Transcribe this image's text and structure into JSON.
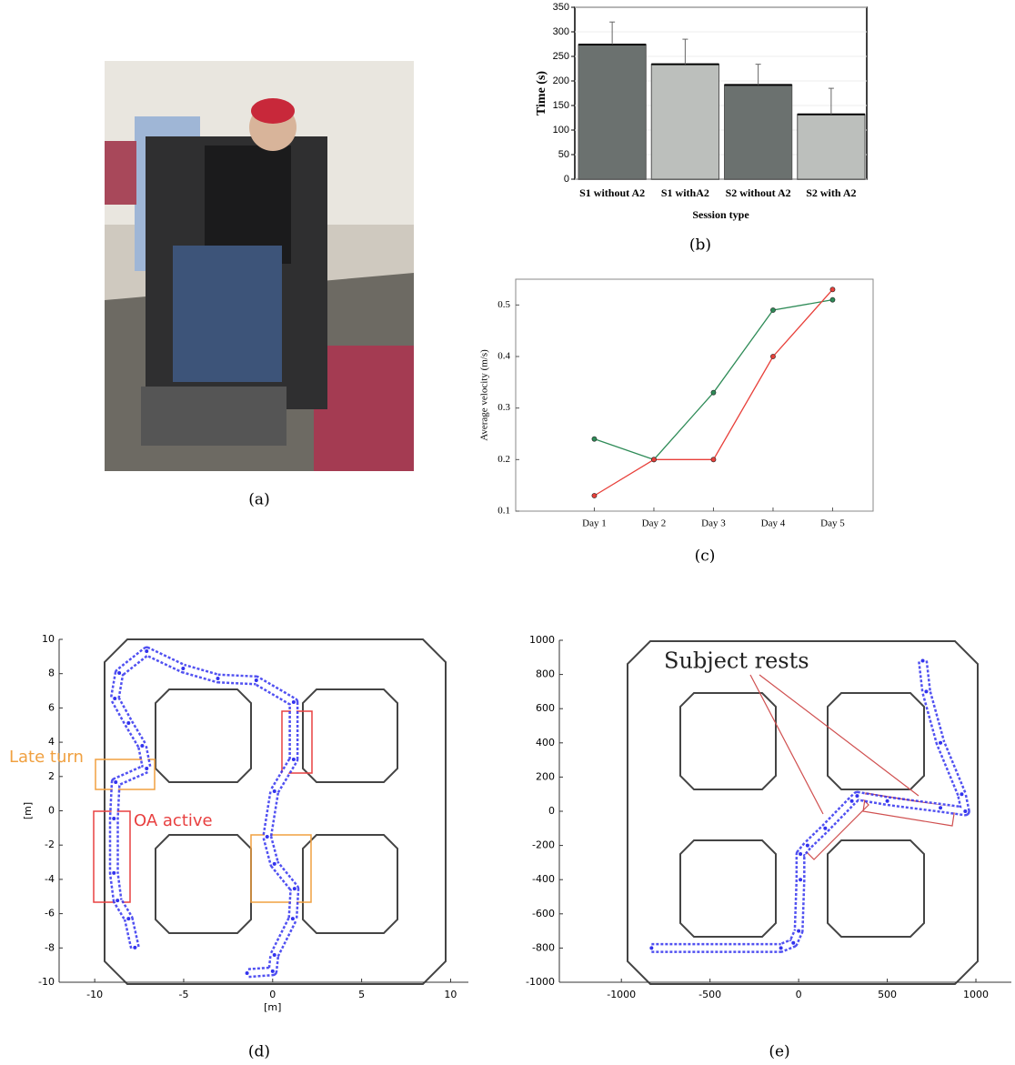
{
  "chart_data": [
    {
      "type": "image",
      "caption": "(a)"
    },
    {
      "type": "bar",
      "caption": "(b)",
      "y_label": "Time (s)",
      "x_label": "Session type",
      "categories": [
        "S1 without A2",
        "S1 withA2",
        "S2 without A2",
        "S2 with A2"
      ],
      "values": [
        274,
        234,
        192,
        132
      ],
      "errors": [
        46,
        51,
        42,
        53
      ],
      "colors": [
        "#6b716f",
        "#bcbfbc",
        "#6b716f",
        "#bcbfbc"
      ],
      "ylim": [
        0,
        350
      ],
      "yticks": [
        0,
        50,
        100,
        150,
        200,
        250,
        300,
        350
      ],
      "grid": true
    },
    {
      "type": "line",
      "caption": "(c)",
      "y_label": "Average velocity (m/s)",
      "categories": [
        "Day 1",
        "Day 2",
        "Day 3",
        "Day 4",
        "Day 5"
      ],
      "series": [
        {
          "color": "#2e8b57",
          "values": [
            0.24,
            0.2,
            0.33,
            0.49,
            0.51
          ]
        },
        {
          "color": "#e8403a",
          "values": [
            0.13,
            0.2,
            0.2,
            0.4,
            0.53
          ]
        }
      ],
      "ylim": [
        0.1,
        0.55
      ],
      "yticks": [
        0.1,
        0.2,
        0.3,
        0.4,
        0.5
      ]
    },
    {
      "type": "trajectory",
      "caption": "(d)",
      "x_label": "[m]",
      "y_label": "[m]",
      "color": "#3333ee",
      "x": [
        -7.74,
        -8.1,
        -8.72,
        -8.92,
        -8.92,
        -8.82,
        -7.08,
        -7.33,
        -8.1,
        -8.87,
        -8.62,
        -7.08,
        -5.03,
        -3.08,
        -0.92,
        1.18,
        1.18,
        0.1,
        -0.31,
        0.1,
        1.23,
        1.13,
        0.1,
        0.0,
        -1.44
      ],
      "values": [
        -7.98,
        -6.29,
        -5.23,
        -3.63,
        -0.45,
        1.67,
        2.47,
        3.79,
        5.12,
        6.55,
        8.04,
        9.31,
        8.3,
        7.72,
        7.61,
        6.34,
        3.0,
        1.14,
        -1.51,
        -3.1,
        -4.54,
        -6.29,
        -8.41,
        -9.36,
        -9.47
      ],
      "xlim": [
        -12,
        11
      ],
      "ylim": [
        -10,
        10
      ],
      "xticks": [
        -10,
        -5,
        0,
        5,
        10
      ],
      "yticks": [
        -10,
        -8,
        -6,
        -4,
        -2,
        0,
        2,
        4,
        6,
        8,
        10
      ],
      "annotations": [
        {
          "text": "Late turn",
          "color": "#f0a040"
        },
        {
          "text": "OA active",
          "color": "#e84040"
        }
      ]
    },
    {
      "type": "trajectory",
      "caption": "(e)",
      "color": "#3333ee",
      "x": [
        -830,
        -100,
        -30,
        0,
        10,
        10,
        50,
        150,
        300,
        330,
        500,
        800,
        940,
        920,
        800,
        720,
        700
      ],
      "values": [
        -800,
        -800,
        -770,
        -700,
        -400,
        -250,
        -200,
        -100,
        60,
        90,
        60,
        20,
        0,
        100,
        400,
        700,
        880
      ],
      "xlim": [
        -1350,
        1200
      ],
      "ylim": [
        -1000,
        1000
      ],
      "xticks": [
        -1000,
        -500,
        0,
        500,
        1000
      ],
      "yticks": [
        -1000,
        -800,
        -600,
        -400,
        -200,
        0,
        200,
        400,
        600,
        800,
        1000
      ],
      "annotations": [
        {
          "text": "Subject rests",
          "color": "#222222"
        }
      ]
    }
  ]
}
